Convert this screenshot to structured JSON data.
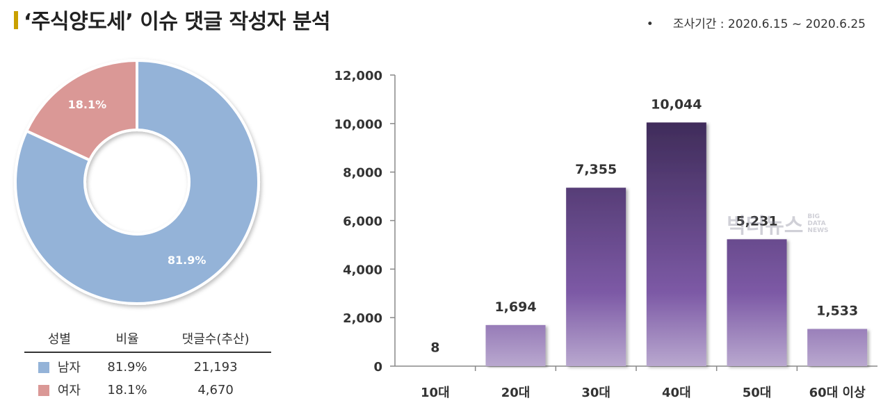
{
  "header": {
    "title": "‘주식양도세’ 이슈 댓글 작성자 분석",
    "period_bullet": "•",
    "period": "조사기간 : 2020.6.15 ~ 2020.6.25"
  },
  "colors": {
    "male": "#94b3d8",
    "female": "#da9896",
    "bar_light": "#b9a8cf",
    "bar_mid": "#7d5aa6",
    "bar_dark": "#2e1f45",
    "title_accent": "#c9a000"
  },
  "table": {
    "headers": [
      "성별",
      "비율",
      "댓글수(추산)"
    ],
    "rows": [
      {
        "label": "남자",
        "ratio": "81.9%",
        "count": "21,193"
      },
      {
        "label": "여자",
        "ratio": "18.1%",
        "count": "4,670"
      }
    ]
  },
  "watermark": {
    "main": "빅터뉴스",
    "line1": "BIG",
    "line2": "DATA",
    "line3": "NEWS"
  },
  "chart_data": [
    {
      "type": "pie",
      "donut": true,
      "categories": [
        "남자",
        "여자"
      ],
      "values": [
        81.9,
        18.1
      ],
      "labels": [
        "81.9%",
        "18.1%"
      ]
    },
    {
      "type": "bar",
      "categories": [
        "10대",
        "20대",
        "30대",
        "40대",
        "50대",
        "60대 이상"
      ],
      "values": [
        8,
        1694,
        7355,
        10044,
        5231,
        1533
      ],
      "value_labels": [
        "8",
        "1,694",
        "7,355",
        "10,044",
        "5,231",
        "1,533"
      ],
      "ylim": [
        0,
        12000
      ],
      "yticks": [
        0,
        2000,
        4000,
        6000,
        8000,
        10000,
        12000
      ],
      "ytick_labels": [
        "0",
        "2,000",
        "4,000",
        "6,000",
        "8,000",
        "10,000",
        "12,000"
      ],
      "grid": false,
      "legend": "none"
    }
  ]
}
